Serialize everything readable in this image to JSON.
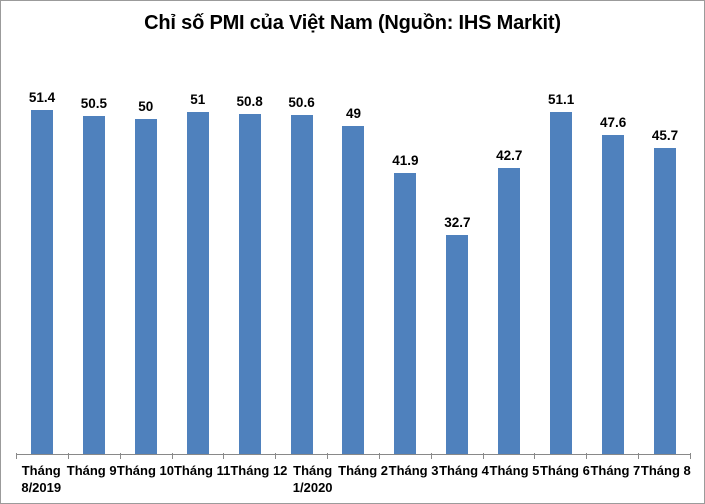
{
  "chart_data": {
    "type": "bar",
    "title": "Chỉ số PMI của Việt Nam (Nguồn: IHS Markit)",
    "categories": [
      "Tháng 8/2019",
      "Tháng 9",
      "Tháng 10",
      "Tháng 11",
      "Tháng 12",
      "Tháng 1/2020",
      "Tháng 2",
      "Tháng 3",
      "Tháng 4",
      "Tháng 5",
      "Tháng 6",
      "Tháng 7",
      "Tháng 8"
    ],
    "category_lines": [
      [
        "Tháng",
        "8/2019"
      ],
      [
        "Tháng 9"
      ],
      [
        "Tháng 10"
      ],
      [
        "Tháng 11"
      ],
      [
        "Tháng 12"
      ],
      [
        "Tháng",
        "1/2020"
      ],
      [
        "Tháng 2"
      ],
      [
        "Tháng 3"
      ],
      [
        "Tháng 4"
      ],
      [
        "Tháng 5"
      ],
      [
        "Tháng 6"
      ],
      [
        "Tháng 7"
      ],
      [
        "Tháng 8"
      ]
    ],
    "values": [
      51.4,
      50.5,
      50,
      51,
      50.8,
      50.6,
      49,
      41.9,
      32.7,
      42.7,
      51.1,
      47.6,
      45.7
    ],
    "value_labels": [
      "51.4",
      "50.5",
      "50",
      "51",
      "50.8",
      "50.6",
      "49",
      "41.9",
      "32.7",
      "42.7",
      "51.1",
      "47.6",
      "45.7"
    ],
    "xlabel": "",
    "ylabel": "",
    "ylim": [
      0,
      60
    ],
    "grid": false,
    "legend_position": "none",
    "data_labels": true,
    "bar_color": "#4f81bd",
    "axis_color": "#898989",
    "label_color": "#000000",
    "frame_border_color": "#9b9b9b"
  }
}
